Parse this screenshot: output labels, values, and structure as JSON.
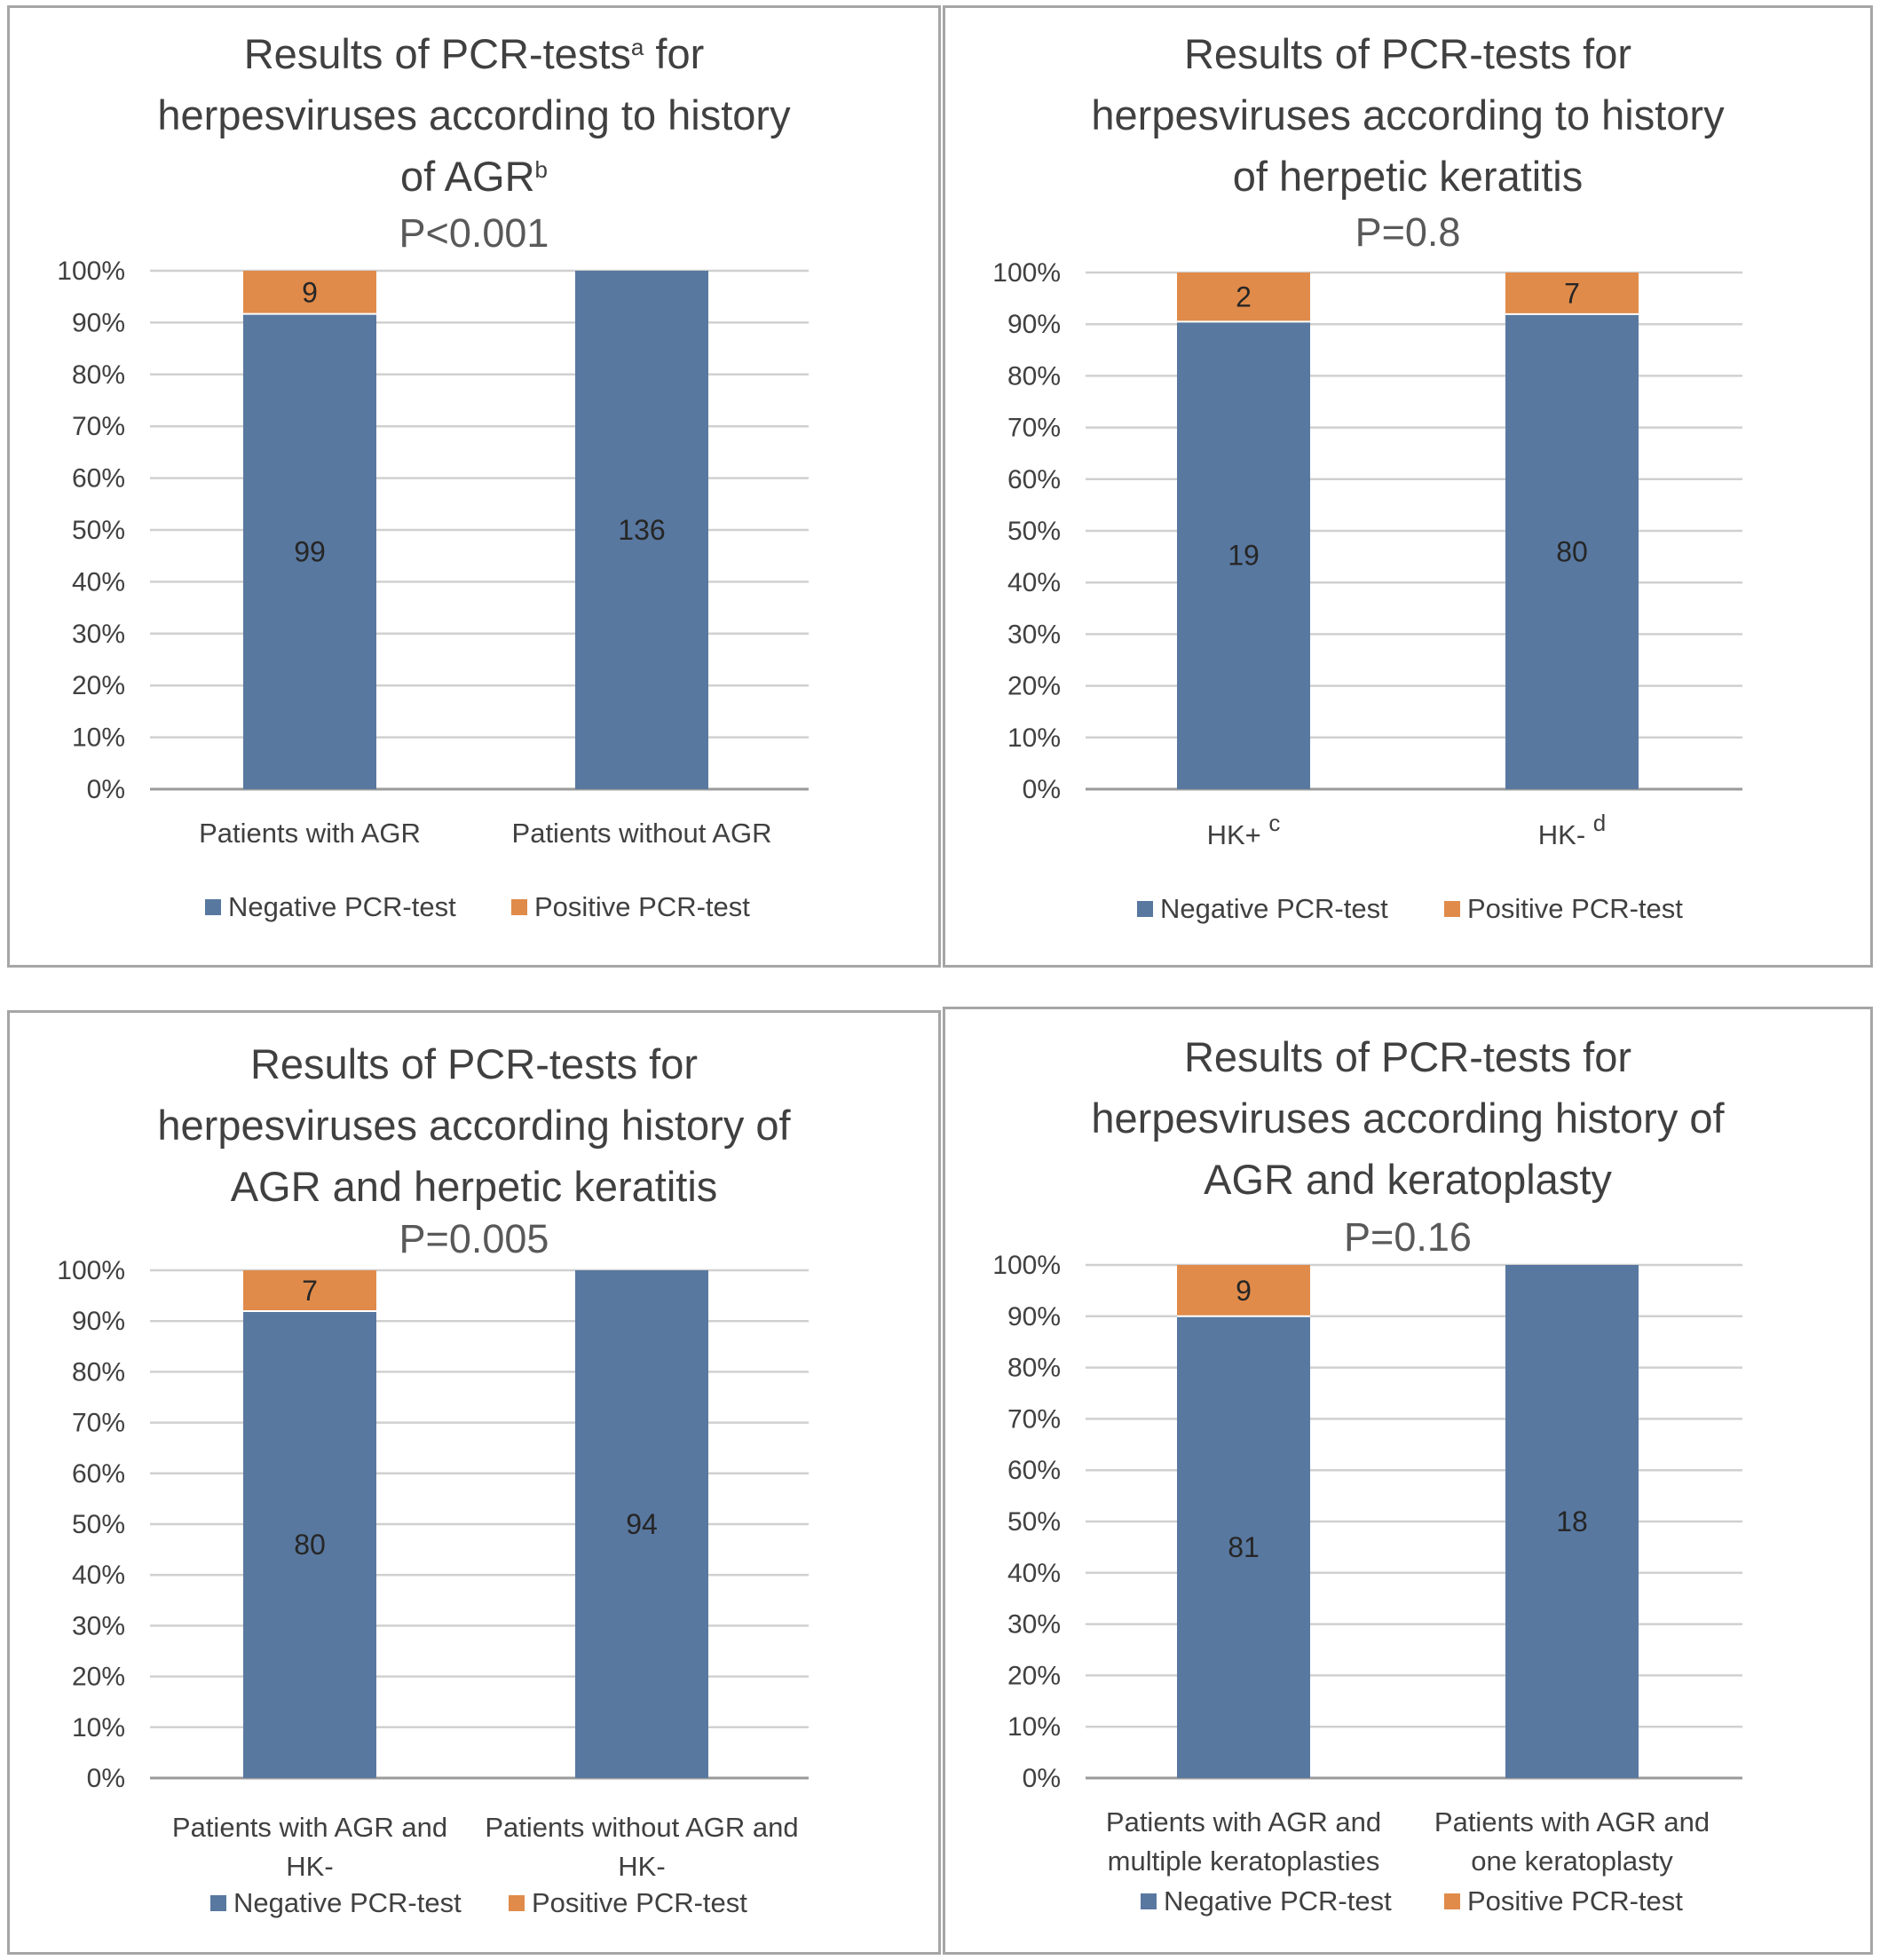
{
  "colors": {
    "negative": "#5878a0",
    "positive": "#e08b4a",
    "grid": "#d0d0d0",
    "axis": "#9a9a9a"
  },
  "chart_data": [
    {
      "type": "bar",
      "stacked": "percent",
      "title_lines": [
        [
          {
            "t": "Results of PCR-tests"
          },
          {
            "t": "a",
            "sup": true
          },
          {
            "t": " for"
          }
        ],
        [
          {
            "t": "herpesviruses  according to history"
          }
        ],
        [
          {
            "t": "of AGR"
          },
          {
            "t": "b",
            "sup": true
          }
        ]
      ],
      "pvalue": "P<0.001",
      "yticks": [
        "0%",
        "10%",
        "20%",
        "30%",
        "40%",
        "50%",
        "60%",
        "70%",
        "80%",
        "90%",
        "100%"
      ],
      "ylim": [
        0,
        100
      ],
      "categories": [
        [
          {
            "t": "Patients with AGR"
          }
        ],
        [
          {
            "t": "Patients without AGR"
          }
        ]
      ],
      "series": [
        {
          "name": "Negative PCR-test",
          "values": [
            99,
            136
          ]
        },
        {
          "name": "Positive PCR-test",
          "values": [
            9,
            0
          ]
        }
      ],
      "legend": "bottom",
      "grid": true
    },
    {
      "type": "bar",
      "stacked": "percent",
      "title_lines": [
        [
          {
            "t": "Results of PCR-tests for"
          }
        ],
        [
          {
            "t": "herpesviruses  according to history"
          }
        ],
        [
          {
            "t": "of herpetic keratitis"
          }
        ]
      ],
      "pvalue": "P=0.8",
      "yticks": [
        "0%",
        "10%",
        "20%",
        "30%",
        "40%",
        "50%",
        "60%",
        "70%",
        "80%",
        "90%",
        "100%"
      ],
      "ylim": [
        0,
        100
      ],
      "categories": [
        [
          {
            "t": "HK+ "
          },
          {
            "t": "c",
            "sup": true
          }
        ],
        [
          {
            "t": "HK- "
          },
          {
            "t": "d",
            "sup": true
          }
        ]
      ],
      "series": [
        {
          "name": "Negative PCR-test",
          "values": [
            19,
            80
          ]
        },
        {
          "name": "Positive PCR-test",
          "values": [
            2,
            7
          ]
        }
      ],
      "legend": "bottom",
      "grid": true
    },
    {
      "type": "bar",
      "stacked": "percent",
      "title_lines": [
        [
          {
            "t": "Results of PCR-tests for"
          }
        ],
        [
          {
            "t": "herpesviruses  according history of"
          }
        ],
        [
          {
            "t": "AGR and herpetic keratitis"
          }
        ]
      ],
      "pvalue": "P=0.005",
      "yticks": [
        "0%",
        "10%",
        "20%",
        "30%",
        "40%",
        "50%",
        "60%",
        "70%",
        "80%",
        "90%",
        "100%"
      ],
      "ylim": [
        0,
        100
      ],
      "categories": [
        [
          {
            "t": "Patients with AGR and"
          },
          {
            "t": "HK-",
            "br": true
          }
        ],
        [
          {
            "t": "Patients without AGR and"
          },
          {
            "t": "HK-",
            "br": true
          }
        ]
      ],
      "series": [
        {
          "name": "Negative PCR-test",
          "values": [
            80,
            94
          ]
        },
        {
          "name": "Positive PCR-test",
          "values": [
            7,
            0
          ]
        }
      ],
      "legend": "bottom",
      "grid": true
    },
    {
      "type": "bar",
      "stacked": "percent",
      "title_lines": [
        [
          {
            "t": "Results of PCR-tests for"
          }
        ],
        [
          {
            "t": "herpesviruses  according history of"
          }
        ],
        [
          {
            "t": "AGR and keratoplasty"
          }
        ]
      ],
      "pvalue": "P=0.16",
      "yticks": [
        "0%",
        "10%",
        "20%",
        "30%",
        "40%",
        "50%",
        "60%",
        "70%",
        "80%",
        "90%",
        "100%"
      ],
      "ylim": [
        0,
        100
      ],
      "categories": [
        [
          {
            "t": "Patients with AGR and"
          },
          {
            "t": "multiple keratoplasties",
            "br": true
          }
        ],
        [
          {
            "t": "Patients with AGR and"
          },
          {
            "t": "one keratoplasty",
            "br": true
          }
        ]
      ],
      "series": [
        {
          "name": "Negative PCR-test",
          "values": [
            81,
            18
          ]
        },
        {
          "name": "Positive PCR-test",
          "values": [
            9,
            0
          ]
        }
      ],
      "legend": "bottom",
      "grid": true
    }
  ]
}
